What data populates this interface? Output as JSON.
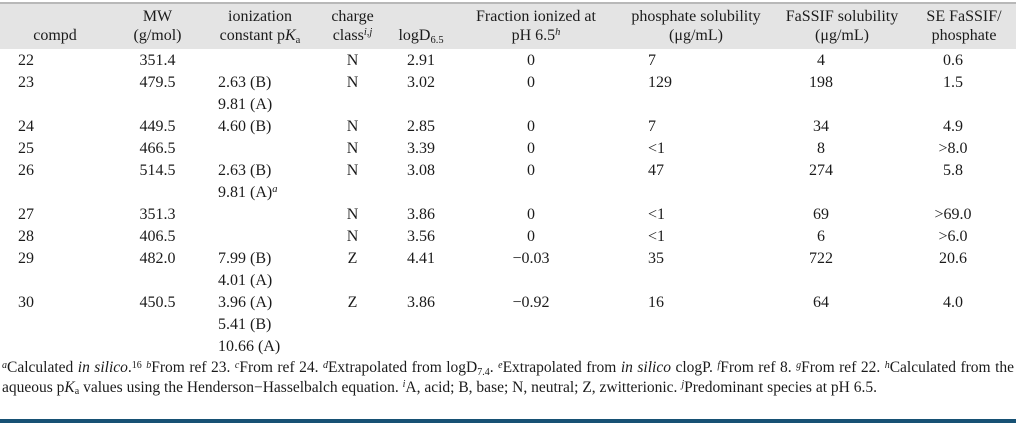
{
  "colors": {
    "header_bg": "#e4e4e4",
    "rule_blue": "#175174",
    "text": "#1b1b1b",
    "header_top_line": "#b8b8b8"
  },
  "header": {
    "compd": "compd",
    "mw1": "MW",
    "mw2": "(g/mol)",
    "pka1": "ionization",
    "pka2a": "constant p",
    "pka2b": "K",
    "pka2c": "a",
    "charge1": "charge",
    "charge2": "class",
    "charge_sup": "i,j",
    "logd": "logD",
    "logd_sub": "6.5",
    "frac1": "Fraction ionized at",
    "frac2": "pH 6.5",
    "frac_sup": "h",
    "phos1": "phosphate solubility",
    "phos2": "(μg/mL)",
    "fassif1": "FaSSIF solubility",
    "fassif2": "(μg/mL)",
    "se1": "SE FaSSIF/",
    "se2": "phosphate"
  },
  "rows": [
    {
      "compd": "22",
      "mw": "351.4",
      "charge": "N",
      "logd": "2.91",
      "fraction": "0",
      "phosphate": "7",
      "fassif": "4",
      "se": "0.6"
    },
    {
      "compd": "23",
      "mw": "479.5",
      "pka1": "2.63 (B)",
      "pka2": "9.81 (A)",
      "charge": "N",
      "logd": "3.02",
      "fraction": "0",
      "phosphate": "129",
      "fassif": "198",
      "se": "1.5"
    },
    {
      "compd": "24",
      "mw": "449.5",
      "pka1": "4.60 (B)",
      "charge": "N",
      "logd": "2.85",
      "fraction": "0",
      "phosphate": "7",
      "fassif": "34",
      "se": "4.9"
    },
    {
      "compd": "25",
      "mw": "466.5",
      "charge": "N",
      "logd": "3.39",
      "fraction": "0",
      "phosphate": "<1",
      "fassif": "8",
      "se": ">8.0"
    },
    {
      "compd": "26",
      "mw": "514.5",
      "pka1": "2.63 (B)",
      "pka2": "9.81 (A)",
      "pka2_sup": "a",
      "charge": "N",
      "logd": "3.08",
      "fraction": "0",
      "phosphate": "47",
      "fassif": "274",
      "se": "5.8"
    },
    {
      "compd": "27",
      "mw": "351.3",
      "charge": "N",
      "logd": "3.86",
      "fraction": "0",
      "phosphate": "<1",
      "fassif": "69",
      "se": ">69.0"
    },
    {
      "compd": "28",
      "mw": "406.5",
      "charge": "N",
      "logd": "3.56",
      "fraction": "0",
      "phosphate": "<1",
      "fassif": "6",
      "se": ">6.0"
    },
    {
      "compd": "29",
      "mw": "482.0",
      "pka1": "7.99 (B)",
      "pka2": "4.01 (A)",
      "charge": "Z",
      "logd": "4.41",
      "fraction": "−0.03",
      "phosphate": "35",
      "fassif": "722",
      "se": "20.6"
    },
    {
      "compd": "30",
      "mw": "450.5",
      "pka1": "3.96 (A)",
      "pka2": "5.41 (B)",
      "pka3": "10.66 (A)",
      "charge": "Z",
      "logd": "3.86",
      "fraction": "−0.92",
      "phosphate": "16",
      "fassif": "64",
      "se": "4.0"
    }
  ],
  "footnotes": {
    "pieces": [
      {
        "t": "sup",
        "v": "a",
        "i": true
      },
      {
        "t": "text",
        "v": "Calculated "
      },
      {
        "t": "text",
        "v": "in silico",
        "i": true
      },
      {
        "t": "text",
        "v": "."
      },
      {
        "t": "sup",
        "v": "16"
      },
      {
        "t": "text",
        "v": " "
      },
      {
        "t": "sup",
        "v": "b",
        "i": true
      },
      {
        "t": "text",
        "v": "From ref 23. "
      },
      {
        "t": "sup",
        "v": "c",
        "i": true
      },
      {
        "t": "text",
        "v": "From ref 24. "
      },
      {
        "t": "sup",
        "v": "d",
        "i": true
      },
      {
        "t": "text",
        "v": "Extrapolated from logD"
      },
      {
        "t": "sub",
        "v": "7.4"
      },
      {
        "t": "text",
        "v": ". "
      },
      {
        "t": "sup",
        "v": "e",
        "i": true
      },
      {
        "t": "text",
        "v": "Extrapolated from "
      },
      {
        "t": "text",
        "v": "in silico",
        "i": true
      },
      {
        "t": "text",
        "v": " clogP. "
      },
      {
        "t": "sup",
        "v": "f",
        "i": true
      },
      {
        "t": "text",
        "v": "From ref 8. "
      },
      {
        "t": "sup",
        "v": "g",
        "i": true
      },
      {
        "t": "text",
        "v": "From ref 22. "
      },
      {
        "t": "sup",
        "v": "h",
        "i": true
      },
      {
        "t": "text",
        "v": "Calculated from the aqueous p"
      },
      {
        "t": "text",
        "v": "K",
        "i": true
      },
      {
        "t": "sub",
        "v": "a"
      },
      {
        "t": "text",
        "v": " values using the Henderson−Hasselbalch equation. "
      },
      {
        "t": "sup",
        "v": "i",
        "i": true
      },
      {
        "t": "text",
        "v": "A, acid; B, base; N, neutral; Z, zwitterionic. "
      },
      {
        "t": "sup",
        "v": "j",
        "i": true
      },
      {
        "t": "text",
        "v": "Predominant species at pH 6.5."
      }
    ]
  }
}
